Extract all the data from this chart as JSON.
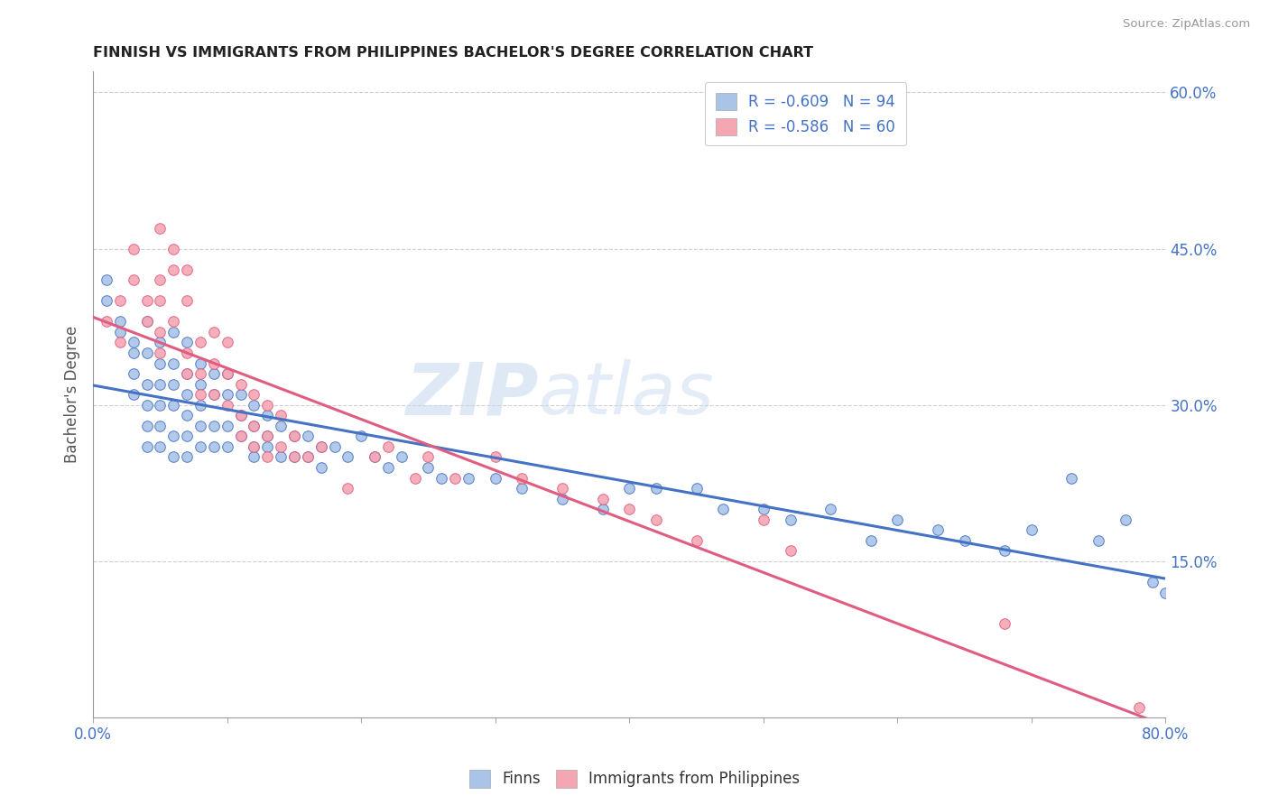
{
  "title": "FINNISH VS IMMIGRANTS FROM PHILIPPINES BACHELOR'S DEGREE CORRELATION CHART",
  "source": "Source: ZipAtlas.com",
  "ylabel": "Bachelor's Degree",
  "legend_bottom": [
    "Finns",
    "Immigrants from Philippines"
  ],
  "r_finns": -0.609,
  "n_finns": 94,
  "r_philippines": -0.586,
  "n_philippines": 60,
  "xlim": [
    0.0,
    0.8
  ],
  "ylim": [
    0.0,
    0.62
  ],
  "yticks": [
    0.15,
    0.3,
    0.45,
    0.6
  ],
  "ytick_labels": [
    "15.0%",
    "30.0%",
    "45.0%",
    "60.0%"
  ],
  "color_finns_scatter": "#aac4e8",
  "color_finns_line": "#4472c4",
  "color_philippines_scatter": "#f4a7b3",
  "color_philippines_line": "#e05c80",
  "watermark_zip": "ZIP",
  "watermark_atlas": "atlas",
  "background_color": "#ffffff",
  "grid_color": "#d0d0d0",
  "title_color": "#222222",
  "axis_label_color": "#4472c4",
  "finns_x": [
    0.01,
    0.01,
    0.02,
    0.02,
    0.03,
    0.03,
    0.03,
    0.03,
    0.04,
    0.04,
    0.04,
    0.04,
    0.04,
    0.04,
    0.05,
    0.05,
    0.05,
    0.05,
    0.05,
    0.05,
    0.06,
    0.06,
    0.06,
    0.06,
    0.06,
    0.06,
    0.07,
    0.07,
    0.07,
    0.07,
    0.07,
    0.07,
    0.08,
    0.08,
    0.08,
    0.08,
    0.08,
    0.09,
    0.09,
    0.09,
    0.09,
    0.1,
    0.1,
    0.1,
    0.1,
    0.11,
    0.11,
    0.11,
    0.12,
    0.12,
    0.12,
    0.12,
    0.13,
    0.13,
    0.13,
    0.14,
    0.14,
    0.15,
    0.15,
    0.16,
    0.16,
    0.17,
    0.17,
    0.18,
    0.19,
    0.2,
    0.21,
    0.22,
    0.23,
    0.25,
    0.26,
    0.28,
    0.3,
    0.32,
    0.35,
    0.38,
    0.4,
    0.42,
    0.45,
    0.47,
    0.5,
    0.52,
    0.55,
    0.58,
    0.6,
    0.63,
    0.65,
    0.68,
    0.7,
    0.73,
    0.75,
    0.77,
    0.79,
    0.8
  ],
  "finns_y": [
    0.4,
    0.42,
    0.38,
    0.37,
    0.35,
    0.36,
    0.33,
    0.31,
    0.38,
    0.35,
    0.32,
    0.3,
    0.28,
    0.26,
    0.36,
    0.34,
    0.32,
    0.3,
    0.28,
    0.26,
    0.37,
    0.34,
    0.32,
    0.3,
    0.27,
    0.25,
    0.36,
    0.33,
    0.31,
    0.29,
    0.27,
    0.25,
    0.34,
    0.32,
    0.3,
    0.28,
    0.26,
    0.33,
    0.31,
    0.28,
    0.26,
    0.33,
    0.31,
    0.28,
    0.26,
    0.31,
    0.29,
    0.27,
    0.3,
    0.28,
    0.26,
    0.25,
    0.29,
    0.27,
    0.26,
    0.28,
    0.25,
    0.27,
    0.25,
    0.27,
    0.25,
    0.26,
    0.24,
    0.26,
    0.25,
    0.27,
    0.25,
    0.24,
    0.25,
    0.24,
    0.23,
    0.23,
    0.23,
    0.22,
    0.21,
    0.2,
    0.22,
    0.22,
    0.22,
    0.2,
    0.2,
    0.19,
    0.2,
    0.17,
    0.19,
    0.18,
    0.17,
    0.16,
    0.18,
    0.23,
    0.17,
    0.19,
    0.13,
    0.12
  ],
  "phil_x": [
    0.01,
    0.02,
    0.02,
    0.03,
    0.03,
    0.04,
    0.04,
    0.05,
    0.05,
    0.05,
    0.05,
    0.05,
    0.06,
    0.06,
    0.06,
    0.07,
    0.07,
    0.07,
    0.07,
    0.08,
    0.08,
    0.08,
    0.09,
    0.09,
    0.09,
    0.1,
    0.1,
    0.1,
    0.11,
    0.11,
    0.11,
    0.12,
    0.12,
    0.12,
    0.13,
    0.13,
    0.13,
    0.14,
    0.14,
    0.15,
    0.15,
    0.16,
    0.17,
    0.19,
    0.21,
    0.22,
    0.24,
    0.25,
    0.27,
    0.3,
    0.32,
    0.35,
    0.38,
    0.4,
    0.42,
    0.45,
    0.5,
    0.52,
    0.68,
    0.78
  ],
  "phil_y": [
    0.38,
    0.4,
    0.36,
    0.45,
    0.42,
    0.4,
    0.38,
    0.42,
    0.4,
    0.37,
    0.35,
    0.47,
    0.45,
    0.43,
    0.38,
    0.43,
    0.4,
    0.35,
    0.33,
    0.36,
    0.33,
    0.31,
    0.37,
    0.34,
    0.31,
    0.36,
    0.33,
    0.3,
    0.32,
    0.29,
    0.27,
    0.31,
    0.28,
    0.26,
    0.3,
    0.27,
    0.25,
    0.29,
    0.26,
    0.27,
    0.25,
    0.25,
    0.26,
    0.22,
    0.25,
    0.26,
    0.23,
    0.25,
    0.23,
    0.25,
    0.23,
    0.22,
    0.21,
    0.2,
    0.19,
    0.17,
    0.19,
    0.16,
    0.09,
    0.01
  ]
}
